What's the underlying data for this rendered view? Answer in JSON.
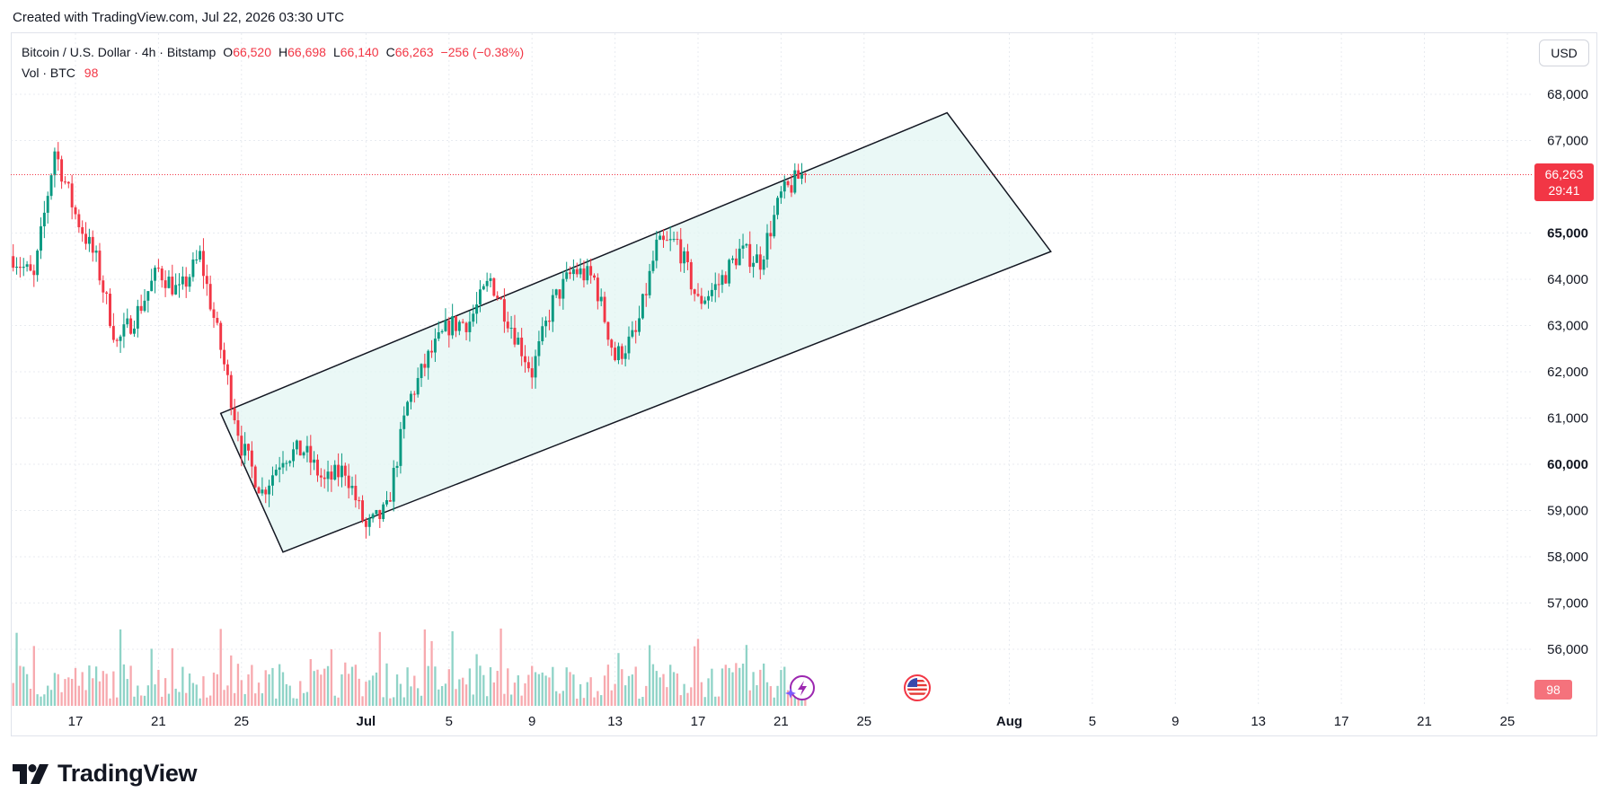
{
  "caption": "Created with TradingView.com, Jul 22, 2026 03:30 UTC",
  "legend": {
    "symbol": "Bitcoin / U.S. Dollar · 4h · Bitstamp",
    "open_label": "O",
    "open": "66,520",
    "high_label": "H",
    "high": "66,698",
    "low_label": "L",
    "low": "66,140",
    "close_label": "C",
    "close": "66,263",
    "change": "−256 (−0.38%)",
    "vol_label": "Vol · BTC",
    "vol_value": "98"
  },
  "currency": "USD",
  "last_price": {
    "price": "66,263",
    "countdown": "29:41"
  },
  "volume_badge": "98",
  "brand": {
    "name": "TradingView"
  },
  "colors": {
    "up": "#089981",
    "down": "#f23645",
    "channel_fill": "#e3f6f3",
    "grid": "#e8ebf0"
  },
  "chart_data": {
    "type": "candlestick",
    "interval": "4h",
    "y_axis": {
      "ticks": [
        "68,000",
        "67,000",
        "65,000",
        "64,000",
        "63,000",
        "62,000",
        "61,000",
        "60,000",
        "59,000",
        "58,000",
        "57,000",
        "56,000"
      ],
      "bold_ticks": [
        "65,000",
        "60,000"
      ],
      "ylim": [
        55000,
        68700
      ]
    },
    "x_axis": {
      "ticks": [
        "17",
        "21",
        "25",
        "Jul",
        "5",
        "9",
        "13",
        "17",
        "21",
        "25",
        "Aug",
        "5",
        "9",
        "13",
        "17",
        "21",
        "25"
      ],
      "bold_ticks": [
        "Jul",
        "Aug"
      ]
    },
    "anchors": [
      [
        "Jun 14",
        64500
      ],
      [
        "Jun 15",
        64000
      ],
      [
        "Jun 16",
        66800
      ],
      [
        "Jun 17",
        65400
      ],
      [
        "Jun 18",
        64400
      ],
      [
        "Jun 19",
        62600
      ],
      [
        "Jun 20",
        63300
      ],
      [
        "Jun 21",
        64200
      ],
      [
        "Jun 22",
        63700
      ],
      [
        "Jun 23",
        64500
      ],
      [
        "Jun 24",
        62500
      ],
      [
        "Jun 25",
        60400
      ],
      [
        "Jun 26",
        59400
      ],
      [
        "Jun 27",
        60200
      ],
      [
        "Jun 28",
        60300
      ],
      [
        "Jun 29",
        59600
      ],
      [
        "Jun 30",
        59900
      ],
      [
        "Jul 1",
        58600
      ],
      [
        "Jul 2",
        59000
      ],
      [
        "Jul 3",
        61300
      ],
      [
        "Jul 4",
        62300
      ],
      [
        "Jul 5",
        63000
      ],
      [
        "Jul 6",
        63100
      ],
      [
        "Jul 7",
        64000
      ],
      [
        "Jul 8",
        63000
      ],
      [
        "Jul 9",
        62000
      ],
      [
        "Jul 10",
        63500
      ],
      [
        "Jul 11",
        64200
      ],
      [
        "Jul 12",
        64000
      ],
      [
        "Jul 13",
        62300
      ],
      [
        "Jul 14",
        62800
      ],
      [
        "Jul 15",
        64700
      ],
      [
        "Jul 16",
        64800
      ],
      [
        "Jul 17",
        63500
      ],
      [
        "Jul 18",
        63900
      ],
      [
        "Jul 19",
        64600
      ],
      [
        "Jul 20",
        64400
      ],
      [
        "Jul 21",
        65800
      ],
      [
        "Jul 22",
        66263
      ]
    ],
    "channel": [
      [
        "Jun 24",
        61100
      ],
      [
        "Jul 29",
        67600
      ],
      [
        "Aug 3",
        64600
      ],
      [
        "Jun 27",
        58100
      ]
    ]
  }
}
